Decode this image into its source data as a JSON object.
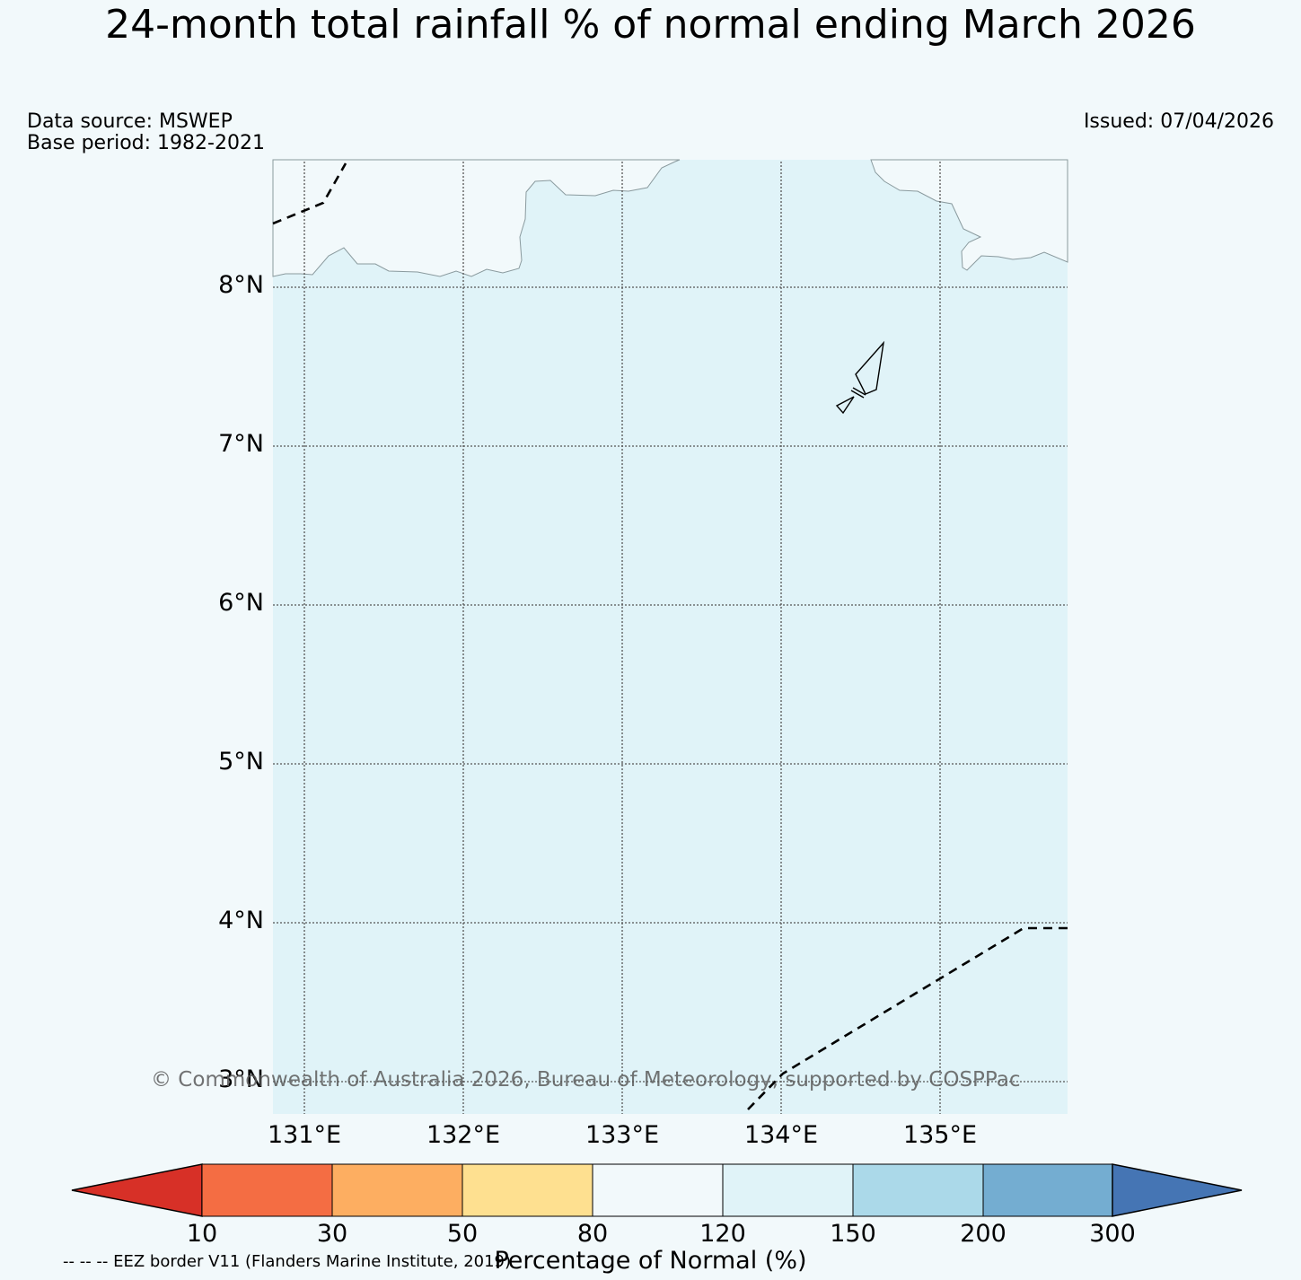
{
  "title": "24-month total rainfall % of normal ending March 2026",
  "data_source": "Data source: MSWEP",
  "base_period": "Base period: 1982-2021",
  "issued": "Issued: 07/04/2026",
  "map": {
    "extent": {
      "lon_min": 130.8,
      "lon_max": 135.8,
      "lat_min": 2.8,
      "lat_max": 8.8
    },
    "lat_labels": [
      "8°N",
      "7°N",
      "6°N",
      "5°N",
      "4°N",
      "3°N"
    ],
    "lon_labels": [
      "131°E",
      "132°E",
      "133°E",
      "134°E",
      "135°E"
    ],
    "land_color": "#e0f3f8",
    "ocean_color": "#f2f9fb"
  },
  "copyright": "© Commonwealth of Australia 2026, Bureau of Meteorology, supported by COSPPac",
  "colorbar": {
    "ticks": [
      "10",
      "30",
      "50",
      "80",
      "120",
      "150",
      "200",
      "300"
    ],
    "colors": [
      "#d73027",
      "#f46d43",
      "#fdae61",
      "#fee090",
      "#f2f9fb",
      "#e0f3f8",
      "#abd9e9",
      "#74add1",
      "#4575b4"
    ],
    "label": "Percentage of Normal (%)"
  },
  "eez_legend": "-- -- -- EEZ border V11 (Flanders Marine Institute, 2019)"
}
